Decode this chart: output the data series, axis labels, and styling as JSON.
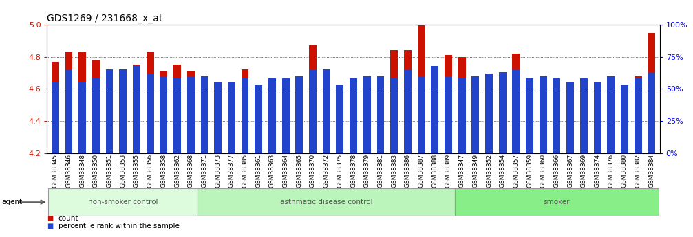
{
  "title": "GDS1269 / 231668_x_at",
  "samples": [
    "GSM38345",
    "GSM38346",
    "GSM38348",
    "GSM38350",
    "GSM38351",
    "GSM38353",
    "GSM38355",
    "GSM38356",
    "GSM38358",
    "GSM38362",
    "GSM38368",
    "GSM38371",
    "GSM38373",
    "GSM38377",
    "GSM38385",
    "GSM38361",
    "GSM38363",
    "GSM38364",
    "GSM38365",
    "GSM38370",
    "GSM38372",
    "GSM38375",
    "GSM38378",
    "GSM38379",
    "GSM38381",
    "GSM38383",
    "GSM38386",
    "GSM38387",
    "GSM38388",
    "GSM38389",
    "GSM38347",
    "GSM38349",
    "GSM38352",
    "GSM38354",
    "GSM38357",
    "GSM38359",
    "GSM38360",
    "GSM38366",
    "GSM38367",
    "GSM38369",
    "GSM38374",
    "GSM38376",
    "GSM38380",
    "GSM38382",
    "GSM38384"
  ],
  "count_values": [
    4.77,
    4.83,
    4.83,
    4.78,
    4.65,
    4.72,
    4.75,
    4.83,
    4.71,
    4.75,
    4.71,
    4.61,
    4.62,
    4.57,
    4.72,
    4.41,
    4.65,
    4.49,
    4.65,
    4.87,
    4.69,
    4.62,
    4.62,
    4.38,
    4.61,
    4.84,
    4.84,
    5.03,
    4.72,
    4.81,
    4.8,
    4.62,
    4.52,
    4.63,
    4.82,
    4.62,
    4.58,
    4.63,
    4.57,
    4.62,
    4.59,
    4.68,
    4.27,
    4.68,
    4.95
  ],
  "percentile_pct": [
    55,
    65,
    55,
    58,
    65,
    65,
    68,
    62,
    60,
    58,
    60,
    60,
    55,
    55,
    58,
    53,
    58,
    58,
    60,
    65,
    65,
    53,
    58,
    60,
    60,
    58,
    65,
    60,
    68,
    60,
    58,
    60,
    62,
    63,
    65,
    58,
    60,
    58,
    55,
    58,
    55,
    60,
    53,
    58,
    63
  ],
  "groups": [
    {
      "label": "non-smoker control",
      "count": 11,
      "color": "#ddfcdd"
    },
    {
      "label": "asthmatic disease control",
      "count": 19,
      "color": "#bbf5bb"
    },
    {
      "label": "smoker",
      "count": 15,
      "color": "#88ee88"
    }
  ],
  "ylim_left": [
    4.2,
    5.0
  ],
  "ylim_right": [
    0,
    100
  ],
  "yticks_left": [
    4.2,
    4.4,
    4.6,
    4.8,
    5.0
  ],
  "yticks_right": [
    0,
    25,
    50,
    75,
    100
  ],
  "bar_color": "#cc1100",
  "blue_color": "#2244cc",
  "background_color": "#ffffff",
  "title_fontsize": 10,
  "tick_fontsize": 6.5,
  "bar_width": 0.55
}
